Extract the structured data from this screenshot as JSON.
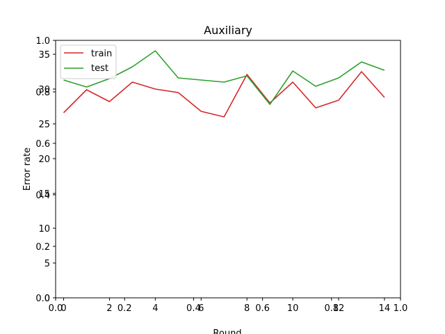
{
  "chart_data": {
    "type": "line",
    "title": "Auxiliary",
    "xlabel": "Round",
    "ylabel": "Error rate",
    "legend": "upper-left",
    "grid": false,
    "xlim": [
      -0.35,
      14.7
    ],
    "ylim": [
      0,
      37
    ],
    "x": [
      0,
      1,
      2,
      3,
      4,
      5,
      6,
      7,
      8,
      9,
      10,
      11,
      12,
      13,
      14
    ],
    "x_ticks": [
      "0",
      "2",
      "4",
      "6",
      "8",
      "10",
      "12",
      "14"
    ],
    "x_tick_values": [
      0,
      2,
      4,
      6,
      8,
      10,
      12,
      14
    ],
    "y_ticks": [
      "0",
      "5",
      "10",
      "15",
      "20",
      "25",
      "30",
      "35"
    ],
    "y_tick_values": [
      0,
      5,
      10,
      15,
      20,
      25,
      30,
      35
    ],
    "overlay_axis": {
      "ticks": [
        "0.0",
        "0.2",
        "0.4",
        "0.6",
        "0.8",
        "1.0"
      ],
      "values": [
        0.0,
        0.2,
        0.4,
        0.6,
        0.8,
        1.0
      ]
    },
    "series": [
      {
        "name": "train",
        "color": "#d62728",
        "values": [
          26.6,
          29.9,
          28.2,
          31.0,
          30.0,
          29.5,
          26.8,
          26.0,
          32.1,
          28.0,
          31.0,
          27.3,
          28.4,
          32.5,
          28.8
        ]
      },
      {
        "name": "test",
        "color": "#2ca02c",
        "values": [
          31.3,
          30.3,
          31.5,
          33.2,
          35.5,
          31.6,
          31.3,
          31.0,
          31.9,
          27.8,
          32.6,
          30.4,
          31.6,
          33.9,
          32.7
        ]
      }
    ]
  }
}
